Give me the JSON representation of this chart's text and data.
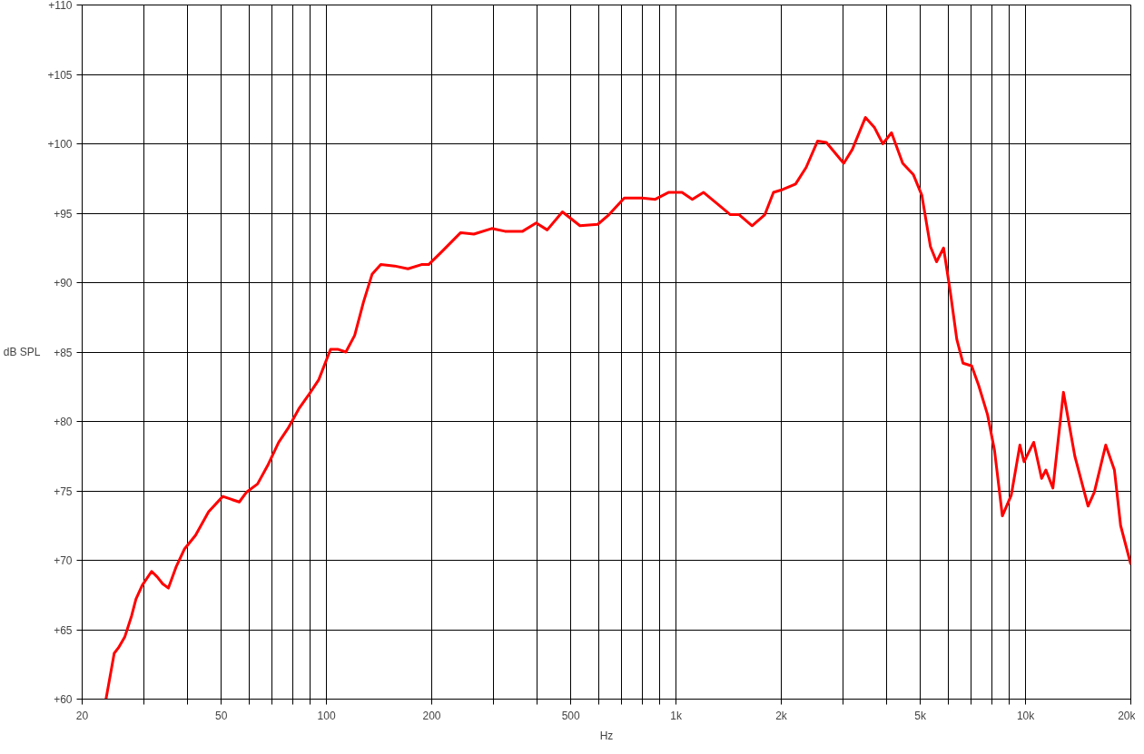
{
  "chart_data": {
    "type": "line",
    "xlabel": "Hz",
    "ylabel": "dB SPL",
    "log": "x",
    "grid": true,
    "marker": "none",
    "line_style": "solid",
    "xlim": [
      20,
      20000
    ],
    "ylim": [
      60,
      110
    ],
    "xticks": [
      20,
      {
        "value": 30,
        "label": null
      },
      {
        "value": 40,
        "label": null
      },
      50,
      {
        "value": 60,
        "label": null
      },
      {
        "value": 70,
        "label": null
      },
      {
        "value": 80,
        "label": null
      },
      {
        "value": 90,
        "label": null
      },
      100,
      200,
      {
        "value": 300,
        "label": null
      },
      {
        "value": 400,
        "label": null
      },
      500,
      {
        "value": 600,
        "label": null
      },
      {
        "value": 700,
        "label": null
      },
      {
        "value": 800,
        "label": null
      },
      {
        "value": 900,
        "label": null
      },
      {
        "value": 1000,
        "label": "1k"
      },
      {
        "value": 2000,
        "label": "2k"
      },
      {
        "value": 3000,
        "label": null
      },
      {
        "value": 4000,
        "label": null
      },
      {
        "value": 5000,
        "label": "5k"
      },
      {
        "value": 6000,
        "label": null
      },
      {
        "value": 7000,
        "label": null
      },
      {
        "value": 8000,
        "label": null
      },
      {
        "value": 9000,
        "label": null
      },
      {
        "value": 10000,
        "label": "10k"
      },
      {
        "value": 20000,
        "label": "20k"
      }
    ],
    "yticks": [
      {
        "value": 60,
        "label": "+60"
      },
      {
        "value": 65,
        "label": "+65"
      },
      {
        "value": 70,
        "label": "+70"
      },
      {
        "value": 75,
        "label": "+75"
      },
      {
        "value": 80,
        "label": "+80"
      },
      {
        "value": 85,
        "label": "+85"
      },
      {
        "value": 90,
        "label": "+90"
      },
      {
        "value": 95,
        "label": "+95"
      },
      {
        "value": 100,
        "label": "+100"
      },
      {
        "value": 105,
        "label": "+105"
      },
      {
        "value": 110,
        "label": "+110"
      }
    ],
    "series": [
      {
        "color": "#ff0000",
        "x": [
          23.4,
          24.7,
          25.4,
          26.5,
          27.7,
          28.5,
          29.7,
          31.6,
          32.8,
          34.0,
          35.3,
          37.1,
          39.2,
          42.2,
          46.0,
          50.5,
          53.3,
          56.3,
          59,
          63.5,
          68.1,
          73.0,
          77.6,
          83.3,
          89.4,
          95,
          102.7,
          107.6,
          113.6,
          120.4,
          127.6,
          135,
          143,
          156.6,
          171,
          187,
          196,
          215,
          242,
          264,
          297,
          324,
          364,
          398,
          428,
          473,
          531,
          597,
          643,
          711,
          799,
          872,
          951,
          1040,
          1113,
          1199,
          1310,
          1430,
          1515,
          1650,
          1795,
          1900,
          2016,
          2197,
          2356,
          2541,
          2691,
          3018,
          3194,
          3482,
          3690,
          3905,
          4134,
          4451,
          4770,
          5047,
          5342,
          5562,
          5826,
          6100,
          6357,
          6620,
          7010,
          7340,
          7780,
          8150,
          8580,
          9100,
          9630,
          9900,
          10550,
          11110,
          11430,
          11970,
          12830,
          13830,
          15090,
          15720,
          16950,
          17950,
          18700,
          20000
        ],
        "values": [
          60,
          63.3,
          63.7,
          64.5,
          66.0,
          67.2,
          68.2,
          69.2,
          68.8,
          68.3,
          68.0,
          69.5,
          70.8,
          71.8,
          73.5,
          74.6,
          74.4,
          74.2,
          74.9,
          75.5,
          76.9,
          78.5,
          79.5,
          80.9,
          82.0,
          83.0,
          85.2,
          85.2,
          85.0,
          86.2,
          88.6,
          90.6,
          91.3,
          91.2,
          91.0,
          91.3,
          91.3,
          92.3,
          93.6,
          93.5,
          93.9,
          93.7,
          93.7,
          94.3,
          93.8,
          95.1,
          94.1,
          94.2,
          94.9,
          96.1,
          96.1,
          96.0,
          96.5,
          96.5,
          96.0,
          96.5,
          95.7,
          94.9,
          94.9,
          94.1,
          94.9,
          96.5,
          96.7,
          97.1,
          98.3,
          100.2,
          100.1,
          98.6,
          99.6,
          101.9,
          101.2,
          100.0,
          100.8,
          98.6,
          97.8,
          96.3,
          92.6,
          91.5,
          92.5,
          89.2,
          85.9,
          84.2,
          84.0,
          82.6,
          80.5,
          77.9,
          73.2,
          74.7,
          78.3,
          77.1,
          78.5,
          75.9,
          76.5,
          75.2,
          82.1,
          77.5,
          73.9,
          74.9,
          78.3,
          76.5,
          72.5,
          69.7
        ]
      }
    ]
  }
}
